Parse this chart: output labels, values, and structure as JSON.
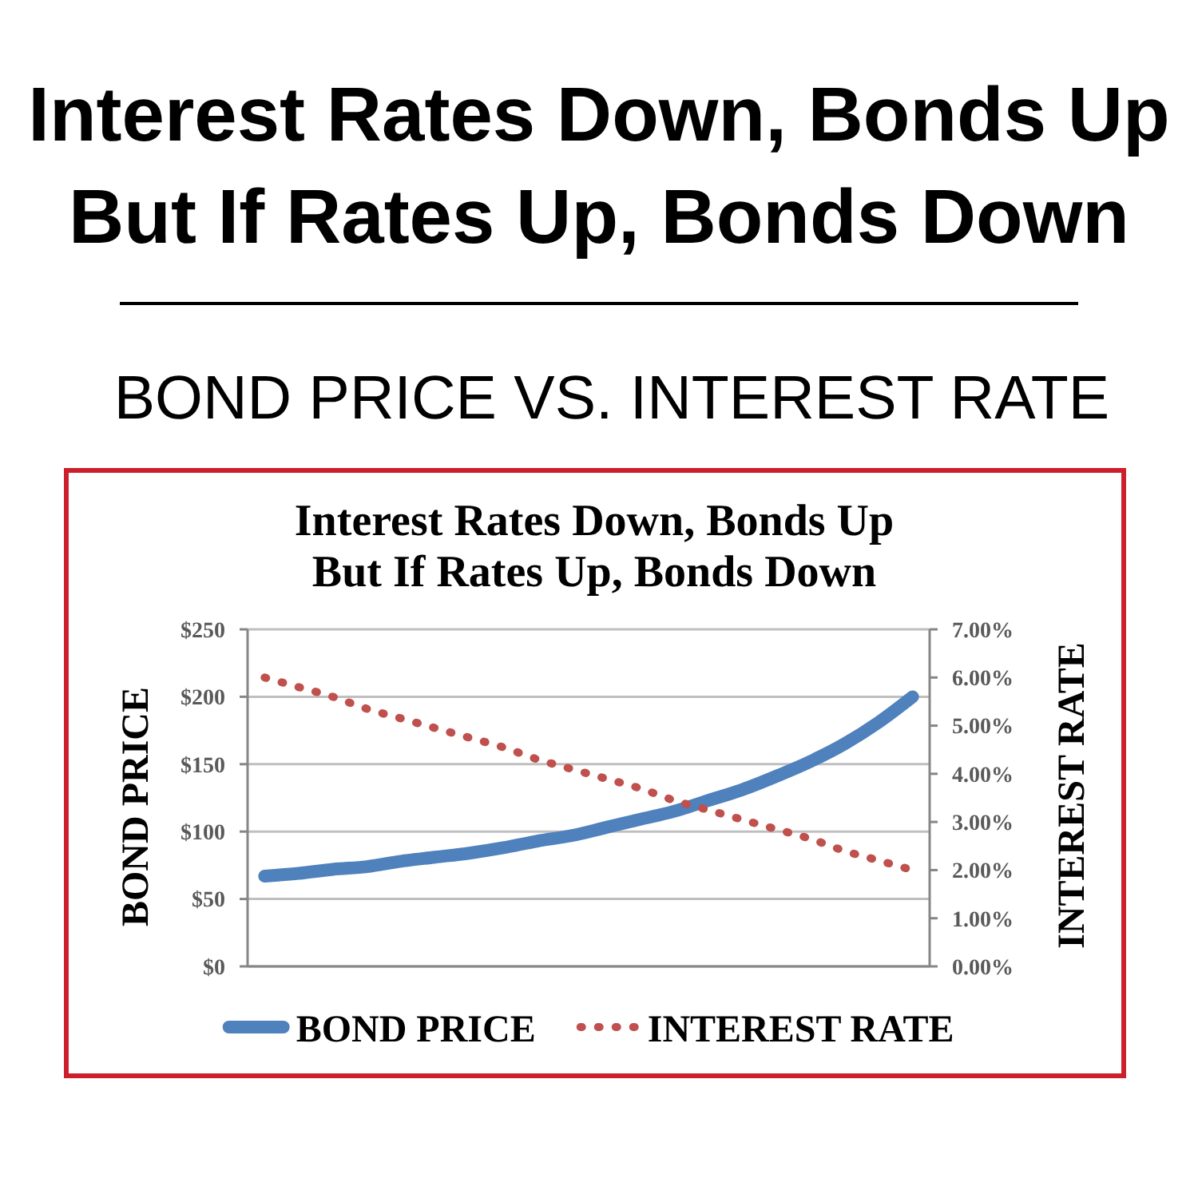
{
  "chart_data": {
    "type": "line",
    "title": "Interest Rates Down, Bonds Up\nBut If Rates Up, Bonds Down",
    "subtitle": "BOND PRICE VS. INTEREST RATE",
    "annotations": [
      "Interest Rates Down, Bonds Up\nBut If Rates Up, Bonds Down"
    ],
    "categories": [
      null,
      null,
      null,
      null,
      null,
      null,
      null,
      null,
      null,
      null,
      null,
      null,
      null,
      null,
      null,
      null,
      null,
      null,
      null,
      null
    ],
    "series": [
      {
        "name": "BOND PRICE",
        "color": "#4f81bd",
        "line_style": "solid",
        "values": [
          67,
          69,
          72,
          74,
          78,
          81,
          84,
          88,
          93,
          97,
          103,
          109,
          115,
          123,
          131,
          141,
          152,
          165,
          181,
          200
        ]
      },
      {
        "name": "INTEREST RATE",
        "color": "#c0504d",
        "line_style": "dotted",
        "axis": "y2",
        "values": [
          6.0,
          5.8,
          5.6,
          5.35,
          5.15,
          4.95,
          4.75,
          4.55,
          4.3,
          4.1,
          3.9,
          3.7,
          3.45,
          3.25,
          3.05,
          2.85,
          2.65,
          2.4,
          2.2,
          2.0
        ]
      }
    ],
    "ylabel": "BOND PRICE",
    "y2label": "INTEREST RATE",
    "ylim": [
      0,
      250
    ],
    "yticks": [
      {
        "value": 0,
        "label": "$0"
      },
      {
        "value": 50,
        "label": "$50"
      },
      {
        "value": 100,
        "label": "$100"
      },
      {
        "value": 150,
        "label": "$150"
      },
      {
        "value": 200,
        "label": "$200"
      },
      {
        "value": 250,
        "label": "$250"
      }
    ],
    "y2lim": [
      0,
      7
    ],
    "y2ticks": [
      {
        "value": 0,
        "label": "0.00%"
      },
      {
        "value": 1,
        "label": "1.00%"
      },
      {
        "value": 2,
        "label": "2.00%"
      },
      {
        "value": 3,
        "label": "3.00%"
      },
      {
        "value": 4,
        "label": "4.00%"
      },
      {
        "value": 5,
        "label": "5.00%"
      },
      {
        "value": 6,
        "label": "6.00%"
      },
      {
        "value": 7,
        "label": "7.00%"
      }
    ],
    "grid": "y",
    "legend": "bottom"
  }
}
